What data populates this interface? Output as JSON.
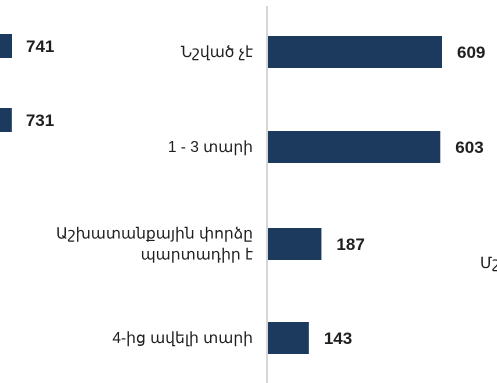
{
  "chart_data": [
    {
      "type": "bar",
      "orientation": "horizontal",
      "categories": [
        "",
        ""
      ],
      "values": [
        741,
        731
      ],
      "note": "left chart partially cropped; category labels not visible"
    },
    {
      "type": "bar",
      "orientation": "horizontal",
      "categories": [
        "Նշված չէ",
        "1 - 3 տարի",
        "Աշխատանքային փորձը պարտադիր է",
        "4-ից ավելի տարի"
      ],
      "category_lines": [
        [
          "Նշված չէ"
        ],
        [
          "1 - 3 տարի"
        ],
        [
          "Աշխատանքային փորձը",
          "պարտադիր է"
        ],
        [
          "4-ից ավելի տարի"
        ]
      ],
      "values": [
        609,
        603,
        187,
        143
      ],
      "xlim": [
        0,
        609
      ]
    }
  ],
  "cropped_right_text": "Մշ",
  "colors": {
    "bar": "#1c3a5e",
    "axis": "#c8c8c8",
    "text": "#1f1f1f"
  }
}
